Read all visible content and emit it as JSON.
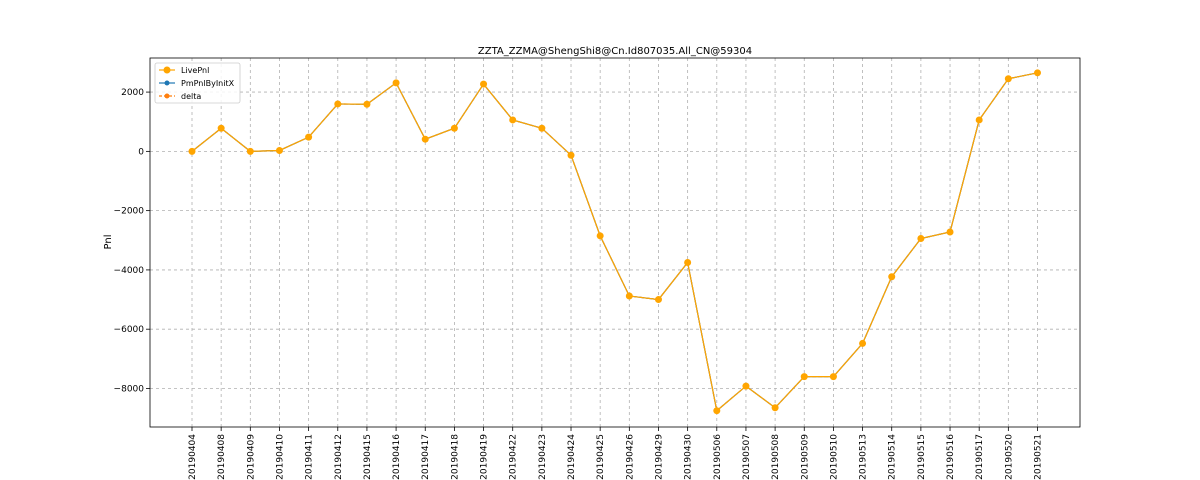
{
  "chart_data": {
    "type": "line",
    "title": "ZZTA_ZZMA@ShengShi8@Cn.Id807035.All_CN@59304",
    "xlabel": "",
    "ylabel": "Pnl",
    "ylim": [
      -9300,
      3150
    ],
    "yticks": [
      -8000,
      -6000,
      -4000,
      -2000,
      0,
      2000
    ],
    "grid": true,
    "legend_position": "top-left",
    "categories": [
      "20190404",
      "20190408",
      "20190409",
      "20190410",
      "20190411",
      "20190412",
      "20190415",
      "20190416",
      "20190417",
      "20190418",
      "20190419",
      "20190422",
      "20190423",
      "20190424",
      "20190425",
      "20190426",
      "20190429",
      "20190430",
      "20190506",
      "20190507",
      "20190508",
      "20190509",
      "20190510",
      "20190513",
      "20190514",
      "20190515",
      "20190516",
      "20190517",
      "20190520",
      "20190521"
    ],
    "series": [
      {
        "name": "LivePnl",
        "color": "#ffa500",
        "marker": "circle",
        "linestyle": "solid",
        "values": [
          0,
          780,
          0,
          30,
          480,
          1600,
          1590,
          2310,
          410,
          780,
          2270,
          1060,
          780,
          -130,
          -2850,
          -4880,
          -5000,
          -3750,
          -8750,
          -7920,
          -8650,
          -7600,
          -7600,
          -6480,
          -4230,
          -2940,
          -2720,
          1060,
          2450,
          2650
        ]
      },
      {
        "name": "PmPnlByInitX",
        "color": "#1f77b4",
        "marker": "circle",
        "linestyle": "solid",
        "values": [
          0,
          780,
          0,
          30,
          480,
          1600,
          1590,
          2310,
          410,
          780,
          2270,
          1060,
          780,
          -130,
          -2850,
          -4880,
          -5000,
          -3750,
          -8750,
          -7920,
          -8650,
          -7600,
          -7600,
          -6480,
          -4230,
          -2940,
          -2720,
          1060,
          2450,
          2650
        ]
      },
      {
        "name": "delta",
        "color": "#ff7f0e",
        "marker": "circle",
        "linestyle": "dashed",
        "values": [
          0,
          780,
          0,
          30,
          480,
          1600,
          1590,
          2310,
          410,
          780,
          2270,
          1060,
          780,
          -130,
          -2850,
          -4880,
          -5000,
          -3750,
          -8750,
          -7920,
          -8650,
          -7600,
          -7600,
          -6480,
          -4230,
          -2940,
          -2720,
          1060,
          2450,
          2650
        ]
      }
    ]
  }
}
